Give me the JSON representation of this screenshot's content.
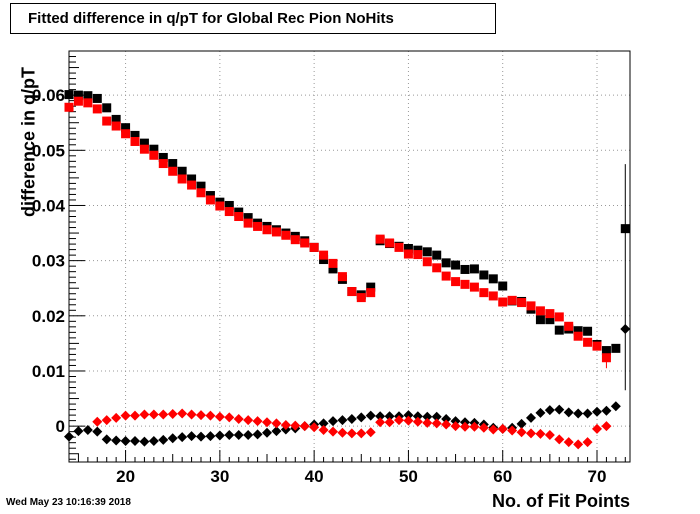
{
  "chart_data": {
    "type": "scatter",
    "title": "Fitted difference in q/pT for Global Rec Pion NoHits",
    "xlabel": "No. of Fit Points",
    "ylabel": "difference in q/pT",
    "timestamp": "Wed May 23 10:16:39 2018",
    "xlim": [
      14,
      73.5
    ],
    "ylim": [
      -0.0065,
      0.068
    ],
    "x_ticks": [
      "20",
      "30",
      "40",
      "50",
      "60",
      "70"
    ],
    "y_ticks": [
      "0",
      "0.01",
      "0.02",
      "0.03",
      "0.04",
      "0.05",
      "0.06"
    ],
    "grid": true,
    "series": [
      {
        "marker": "square",
        "color": "#000000",
        "points": [
          [
            14,
            0.0601
          ],
          [
            15,
            0.06
          ],
          [
            16,
            0.0599
          ],
          [
            17,
            0.0594
          ],
          [
            18,
            0.0577
          ],
          [
            19,
            0.0556
          ],
          [
            20,
            0.0541
          ],
          [
            21,
            0.0527
          ],
          [
            22,
            0.0513
          ],
          [
            23,
            0.0502
          ],
          [
            24,
            0.0487
          ],
          [
            25,
            0.0476
          ],
          [
            26,
            0.0462
          ],
          [
            27,
            0.0448
          ],
          [
            28,
            0.0435
          ],
          [
            29,
            0.0418
          ],
          [
            30,
            0.0406
          ],
          [
            31,
            0.04
          ],
          [
            32,
            0.0388
          ],
          [
            33,
            0.0378
          ],
          [
            34,
            0.0368
          ],
          [
            35,
            0.0362
          ],
          [
            36,
            0.0356
          ],
          [
            37,
            0.035
          ],
          [
            38,
            0.0344
          ],
          [
            39,
            0.0336
          ],
          [
            40,
            0.0324
          ],
          [
            41,
            0.0302
          ],
          [
            42,
            0.0285
          ],
          [
            43,
            0.0266
          ],
          [
            44,
            0.0244
          ],
          [
            45,
            0.0238
          ],
          [
            46,
            0.0252
          ],
          [
            47,
            0.0336
          ],
          [
            48,
            0.0331
          ],
          [
            49,
            0.0326
          ],
          [
            50,
            0.0322
          ],
          [
            51,
            0.0319
          ],
          [
            52,
            0.0316
          ],
          [
            53,
            0.031
          ],
          [
            54,
            0.0296
          ],
          [
            55,
            0.0292
          ],
          [
            56,
            0.0284
          ],
          [
            57,
            0.0285
          ],
          [
            58,
            0.0274
          ],
          [
            59,
            0.0267
          ],
          [
            60,
            0.0254
          ],
          [
            61,
            0.0227
          ],
          [
            62,
            0.0226
          ],
          [
            63,
            0.0212
          ],
          [
            64,
            0.0193
          ],
          [
            65,
            0.0193
          ],
          [
            66,
            0.0174
          ],
          [
            67,
            0.0176
          ],
          [
            68,
            0.0173
          ],
          [
            69,
            0.0172
          ],
          [
            70,
            0.0148
          ],
          [
            71,
            0.0137
          ],
          [
            72,
            0.0141
          ],
          [
            73,
            0.0358
          ]
        ]
      },
      {
        "marker": "square",
        "color": "#ff0000",
        "points": [
          [
            14,
            0.0578
          ],
          [
            15,
            0.0589
          ],
          [
            16,
            0.0586
          ],
          [
            17,
            0.0575
          ],
          [
            18,
            0.0553
          ],
          [
            19,
            0.0544
          ],
          [
            20,
            0.053
          ],
          [
            21,
            0.0516
          ],
          [
            22,
            0.0502
          ],
          [
            23,
            0.0491
          ],
          [
            24,
            0.0476
          ],
          [
            25,
            0.0462
          ],
          [
            26,
            0.0448
          ],
          [
            27,
            0.0437
          ],
          [
            28,
            0.0423
          ],
          [
            29,
            0.041
          ],
          [
            30,
            0.0399
          ],
          [
            31,
            0.0389
          ],
          [
            32,
            0.038
          ],
          [
            33,
            0.0368
          ],
          [
            34,
            0.0362
          ],
          [
            35,
            0.0356
          ],
          [
            36,
            0.0352
          ],
          [
            37,
            0.0346
          ],
          [
            38,
            0.0338
          ],
          [
            39,
            0.0332
          ],
          [
            40,
            0.0324
          ],
          [
            41,
            0.031
          ],
          [
            42,
            0.0295
          ],
          [
            43,
            0.0271
          ],
          [
            44,
            0.0244
          ],
          [
            45,
            0.0233
          ],
          [
            46,
            0.0242
          ],
          [
            47,
            0.0339
          ],
          [
            48,
            0.0332
          ],
          [
            49,
            0.0324
          ],
          [
            50,
            0.0312
          ],
          [
            51,
            0.0311
          ],
          [
            52,
            0.0298
          ],
          [
            53,
            0.0287
          ],
          [
            54,
            0.0272
          ],
          [
            55,
            0.0262
          ],
          [
            56,
            0.0257
          ],
          [
            57,
            0.0252
          ],
          [
            58,
            0.0242
          ],
          [
            59,
            0.0236
          ],
          [
            60,
            0.0225
          ],
          [
            61,
            0.0228
          ],
          [
            62,
            0.0224
          ],
          [
            63,
            0.0218
          ],
          [
            64,
            0.0209
          ],
          [
            65,
            0.0204
          ],
          [
            66,
            0.0198
          ],
          [
            67,
            0.0181
          ],
          [
            68,
            0.0163
          ],
          [
            69,
            0.0152
          ],
          [
            70,
            0.0145
          ],
          [
            71,
            0.0124
          ]
        ]
      },
      {
        "marker": "diamond",
        "color": "#000000",
        "points": [
          [
            14,
            -0.0019
          ],
          [
            15,
            -0.0009
          ],
          [
            16,
            -0.0007
          ],
          [
            17,
            -0.001
          ],
          [
            18,
            -0.0024
          ],
          [
            19,
            -0.0026
          ],
          [
            20,
            -0.0027
          ],
          [
            21,
            -0.0027
          ],
          [
            22,
            -0.0028
          ],
          [
            23,
            -0.0027
          ],
          [
            24,
            -0.0025
          ],
          [
            25,
            -0.0022
          ],
          [
            26,
            -0.002
          ],
          [
            27,
            -0.0018
          ],
          [
            28,
            -0.0019
          ],
          [
            29,
            -0.0018
          ],
          [
            30,
            -0.0017
          ],
          [
            31,
            -0.0016
          ],
          [
            32,
            -0.0016
          ],
          [
            33,
            -0.0016
          ],
          [
            34,
            -0.0015
          ],
          [
            35,
            -0.0012
          ],
          [
            36,
            -0.0009
          ],
          [
            37,
            -0.0006
          ],
          [
            38,
            -0.0004
          ],
          [
            39,
            0.0
          ],
          [
            40,
            0.0003
          ],
          [
            41,
            0.0005
          ],
          [
            42,
            0.0009
          ],
          [
            43,
            0.0011
          ],
          [
            44,
            0.0013
          ],
          [
            45,
            0.0016
          ],
          [
            46,
            0.0019
          ],
          [
            47,
            0.0018
          ],
          [
            48,
            0.0018
          ],
          [
            49,
            0.0018
          ],
          [
            50,
            0.002
          ],
          [
            51,
            0.0018
          ],
          [
            52,
            0.0017
          ],
          [
            53,
            0.0017
          ],
          [
            54,
            0.0013
          ],
          [
            55,
            0.0009
          ],
          [
            56,
            0.0007
          ],
          [
            57,
            0.0006
          ],
          [
            58,
            0.0003
          ],
          [
            59,
            -0.0003
          ],
          [
            60,
            -0.0005
          ],
          [
            61,
            -0.0003
          ],
          [
            62,
            0.0004
          ],
          [
            63,
            0.0015
          ],
          [
            64,
            0.0024
          ],
          [
            65,
            0.0029
          ],
          [
            66,
            0.003
          ],
          [
            67,
            0.0025
          ],
          [
            68,
            0.0023
          ],
          [
            69,
            0.0023
          ],
          [
            70,
            0.0026
          ],
          [
            71,
            0.0028
          ],
          [
            72,
            0.0036
          ],
          [
            73,
            0.0176
          ]
        ]
      },
      {
        "marker": "diamond",
        "color": "#ff0000",
        "points": [
          [
            17,
            0.0008
          ],
          [
            18,
            0.0011
          ],
          [
            19,
            0.0015
          ],
          [
            20,
            0.0019
          ],
          [
            21,
            0.0019
          ],
          [
            22,
            0.0021
          ],
          [
            23,
            0.0021
          ],
          [
            24,
            0.0021
          ],
          [
            25,
            0.0022
          ],
          [
            26,
            0.0023
          ],
          [
            27,
            0.0021
          ],
          [
            28,
            0.002
          ],
          [
            29,
            0.0019
          ],
          [
            30,
            0.0017
          ],
          [
            31,
            0.0016
          ],
          [
            32,
            0.0013
          ],
          [
            33,
            0.0011
          ],
          [
            34,
            0.0009
          ],
          [
            35,
            0.0007
          ],
          [
            36,
            0.0005
          ],
          [
            37,
            0.0002
          ],
          [
            38,
            0.0001
          ],
          [
            39,
            0.0
          ],
          [
            40,
            -0.0002
          ],
          [
            41,
            -0.0007
          ],
          [
            42,
            -0.001
          ],
          [
            43,
            -0.0012
          ],
          [
            44,
            -0.0013
          ],
          [
            45,
            -0.0013
          ],
          [
            46,
            -0.0011
          ],
          [
            47,
            0.0007
          ],
          [
            48,
            0.0007
          ],
          [
            49,
            0.0011
          ],
          [
            50,
            0.001
          ],
          [
            51,
            0.0008
          ],
          [
            52,
            0.0006
          ],
          [
            53,
            0.0005
          ],
          [
            54,
            0.0003
          ],
          [
            55,
            0.0
          ],
          [
            56,
            -0.0001
          ],
          [
            57,
            -0.0001
          ],
          [
            58,
            -0.0003
          ],
          [
            59,
            -0.0006
          ],
          [
            60,
            -0.0005
          ],
          [
            61,
            -0.0008
          ],
          [
            62,
            -0.0011
          ],
          [
            63,
            -0.0013
          ],
          [
            64,
            -0.0014
          ],
          [
            65,
            -0.0016
          ],
          [
            66,
            -0.0024
          ],
          [
            67,
            -0.0029
          ],
          [
            68,
            -0.0033
          ],
          [
            69,
            -0.0029
          ],
          [
            70,
            -0.0005
          ],
          [
            71,
            0.0
          ]
        ]
      }
    ],
    "error_bars": [
      {
        "x": 73,
        "y_low": 0.0065,
        "y_high": 0.0475,
        "color": "#000000"
      },
      {
        "x": 71,
        "y_low": 0.0105,
        "y_high": 0.0142,
        "color": "#ff0000"
      }
    ]
  }
}
